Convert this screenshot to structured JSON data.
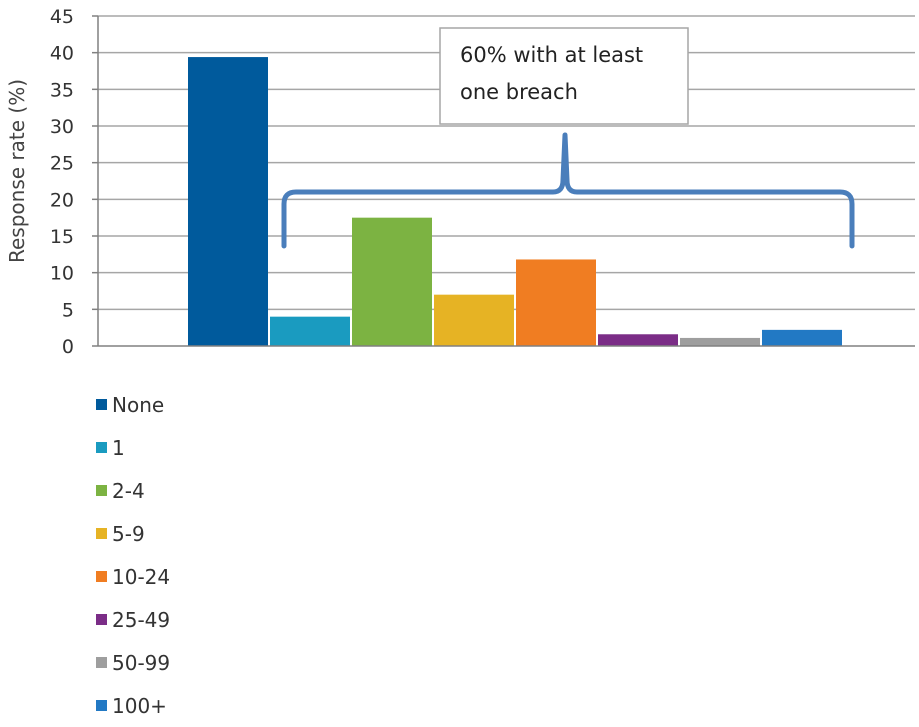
{
  "chart_data": {
    "type": "bar",
    "ylabel": "Response rate  (%)",
    "ylim": [
      0,
      45
    ],
    "yticks": [
      0,
      5,
      10,
      15,
      20,
      25,
      30,
      35,
      40,
      45
    ],
    "grid": true,
    "legend_position": "bottom-left",
    "series": [
      {
        "name": "None",
        "value": 39.4,
        "color": "#005a9c"
      },
      {
        "name": "1",
        "value": 4.0,
        "color": "#1a9bc0"
      },
      {
        "name": "2-4",
        "value": 17.5,
        "color": "#7cb342"
      },
      {
        "name": "5-9",
        "value": 7.0,
        "color": "#e6b324"
      },
      {
        "name": "10-24",
        "value": 11.8,
        "color": "#f07d22"
      },
      {
        "name": "25-49",
        "value": 1.6,
        "color": "#7b2d87"
      },
      {
        "name": "50-99",
        "value": 1.1,
        "color": "#9e9e9e"
      },
      {
        "name": "100+",
        "value": 2.2,
        "color": "#2279c4"
      }
    ],
    "annotation": {
      "lines": [
        "60% with at least",
        "one breach"
      ],
      "bracket_color": "#4a7ebb"
    }
  }
}
